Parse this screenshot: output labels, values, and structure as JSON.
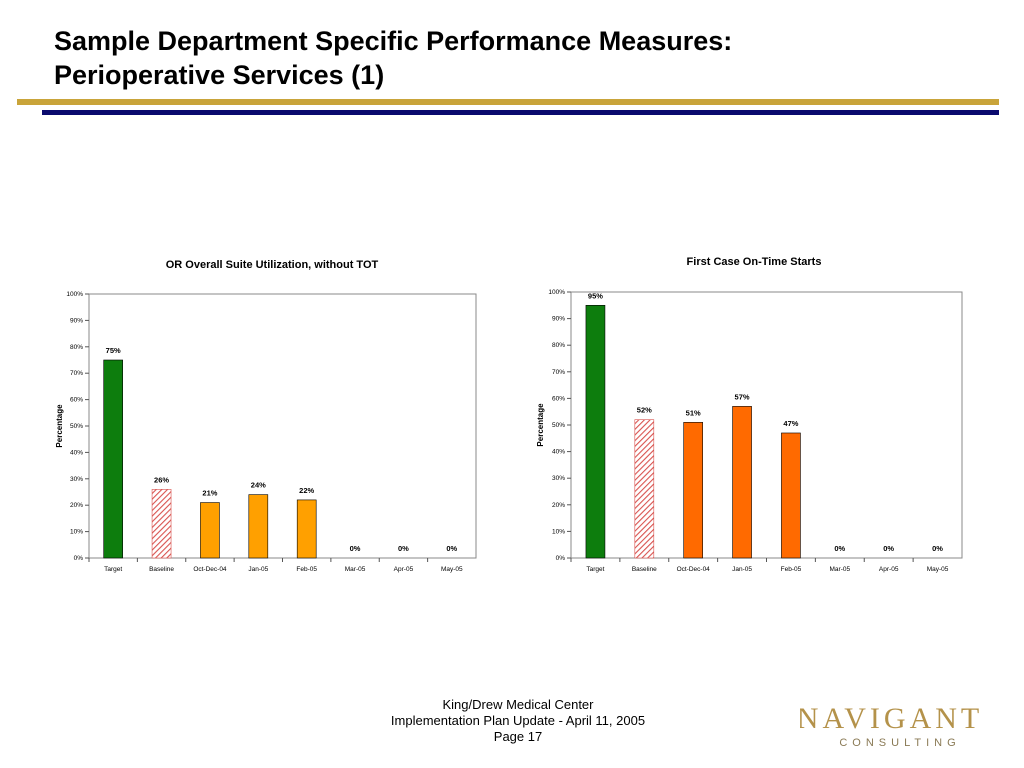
{
  "slide": {
    "title_line1": "Sample Department Specific Performance Measures:",
    "title_line2": "Perioperative Services (1)"
  },
  "footer": {
    "line1": "King/Drew Medical Center",
    "line2": "Implementation Plan Update - April 11, 2005",
    "line3": "Page 17"
  },
  "logo": {
    "word": "NAVIGANT",
    "sub": "CONSULTING",
    "color_word": "#b4924a",
    "color_sub": "#8a7a55"
  },
  "colors": {
    "gold_rule": "#c9a43a",
    "navy_rule": "#0a0a6e"
  },
  "chart_data": [
    {
      "type": "bar",
      "title": "OR Overall Suite Utilization, without TOT",
      "ylabel": "Percentage",
      "xlabel": "",
      "ylim": [
        0,
        100
      ],
      "yticks": [
        0,
        10,
        20,
        30,
        40,
        50,
        60,
        70,
        80,
        90,
        100
      ],
      "ytick_suffix": "%",
      "grid": false,
      "categories": [
        "Target",
        "Baseline",
        "Oct-Dec-04",
        "Jan-05",
        "Feb-05",
        "Mar-05",
        "Apr-05",
        "May-05"
      ],
      "values": [
        75,
        26,
        21,
        24,
        22,
        0,
        0,
        0
      ],
      "value_labels": [
        "75%",
        "26%",
        "21%",
        "24%",
        "22%",
        "0%",
        "0%",
        "0%"
      ],
      "bar_styles": [
        "solid",
        "hatched",
        "solid",
        "solid",
        "solid",
        "solid",
        "solid",
        "solid"
      ],
      "bar_colors": [
        "#0d7d0d",
        "#d9534f",
        "#ffa000",
        "#ffa000",
        "#ffa000",
        "#ffa000",
        "#ffa000",
        "#ffa000"
      ]
    },
    {
      "type": "bar",
      "title": "First Case On-Time Starts",
      "ylabel": "Percentage",
      "xlabel": "",
      "ylim": [
        0,
        100
      ],
      "yticks": [
        0,
        10,
        20,
        30,
        40,
        50,
        60,
        70,
        80,
        90,
        100
      ],
      "ytick_suffix": "%",
      "grid": false,
      "categories": [
        "Target",
        "Baseline",
        "Oct-Dec-04",
        "Jan-05",
        "Feb-05",
        "Mar-05",
        "Apr-05",
        "May-05"
      ],
      "values": [
        95,
        52,
        51,
        57,
        47,
        0,
        0,
        0
      ],
      "value_labels": [
        "95%",
        "52%",
        "51%",
        "57%",
        "47%",
        "0%",
        "0%",
        "0%"
      ],
      "bar_styles": [
        "solid",
        "hatched",
        "solid",
        "solid",
        "solid",
        "solid",
        "solid",
        "solid"
      ],
      "bar_colors": [
        "#0d7d0d",
        "#d9534f",
        "#ff6a00",
        "#ff6a00",
        "#ff6a00",
        "#ff6a00",
        "#ff6a00",
        "#ff6a00"
      ]
    }
  ]
}
